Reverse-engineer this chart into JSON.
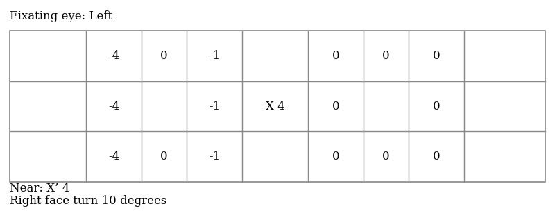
{
  "title": "Fixating eye: Left",
  "footer_line1": "Near: X’ 4",
  "footer_line2": "Right face turn 10 degrees",
  "center_label": "X 4",
  "left_cells": [
    [
      "-4",
      "0",
      "-1"
    ],
    [
      "-4",
      "",
      "-1"
    ],
    [
      "-4",
      "0",
      "-1"
    ]
  ],
  "right_cells": [
    [
      "0",
      "0",
      "0"
    ],
    [
      "0",
      "",
      "0"
    ],
    [
      "0",
      "0",
      "0"
    ]
  ],
  "background_color": "#ffffff",
  "text_color": "#000000",
  "grid_color": "#888888",
  "font_size": 12,
  "title_font_size": 12,
  "footer_font_size": 12
}
